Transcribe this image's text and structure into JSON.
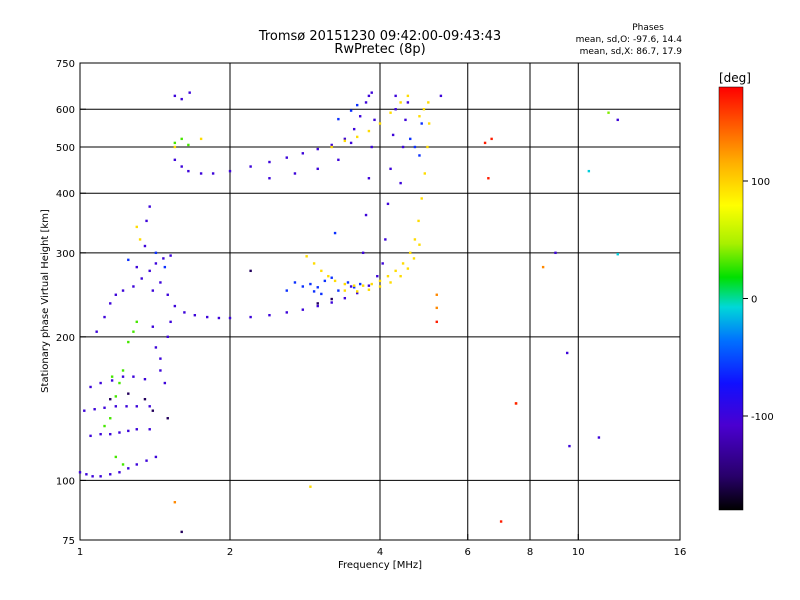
{
  "chart_data": {
    "type": "scatter",
    "title": "Tromsø 20151230 09:42:00-09:43:43",
    "subtitle": "RwPretec (8p)",
    "xlabel": "Frequency [MHz]",
    "ylabel": "Stationary phase Virtual Height [km]",
    "x_scale": "log",
    "y_scale": "log",
    "xlim": [
      1,
      16
    ],
    "ylim": [
      75,
      750
    ],
    "x_ticks": [
      1,
      2,
      4,
      6,
      8,
      10,
      16
    ],
    "y_ticks": [
      75,
      100,
      200,
      300,
      400,
      500,
      600,
      750
    ],
    "x_gridlines": [
      2,
      4,
      6,
      8,
      10
    ],
    "y_gridlines": [
      100,
      200,
      300,
      400,
      500,
      600
    ],
    "grid": true,
    "phases": {
      "title": "Phases",
      "line_o": "mean, sd,O: -97.6, 14.4",
      "line_x": "mean, sd,X:  86.7, 17.9"
    },
    "colorbar": {
      "unit": "[deg]",
      "range": [
        -180,
        180
      ],
      "ticks": [
        100,
        0,
        -100
      ]
    },
    "series": [
      {
        "points": [
          [
            1.0,
            104,
            -100
          ],
          [
            1.03,
            103,
            -100
          ],
          [
            1.06,
            102,
            -100
          ],
          [
            1.1,
            102,
            -100
          ],
          [
            1.15,
            103,
            -100
          ],
          [
            1.2,
            104,
            -100
          ],
          [
            1.25,
            106,
            -100
          ],
          [
            1.3,
            108,
            -100
          ],
          [
            1.36,
            110,
            -100
          ],
          [
            1.42,
            112,
            -100
          ],
          [
            1.05,
            124,
            -100
          ],
          [
            1.1,
            125,
            -100
          ],
          [
            1.15,
            125,
            -100
          ],
          [
            1.2,
            126,
            -100
          ],
          [
            1.25,
            127,
            -100
          ],
          [
            1.3,
            128,
            -100
          ],
          [
            1.38,
            128,
            -100
          ],
          [
            1.02,
            140,
            -100
          ],
          [
            1.07,
            141,
            -100
          ],
          [
            1.12,
            142,
            -100
          ],
          [
            1.18,
            143,
            -100
          ],
          [
            1.24,
            143,
            -100
          ],
          [
            1.3,
            143,
            -100
          ],
          [
            1.38,
            143,
            -100
          ],
          [
            1.05,
            157,
            -100
          ],
          [
            1.1,
            160,
            -100
          ],
          [
            1.16,
            162,
            -100
          ],
          [
            1.22,
            165,
            -100
          ],
          [
            1.28,
            165,
            -100
          ],
          [
            1.35,
            163,
            -100
          ],
          [
            1.08,
            205,
            -100
          ],
          [
            1.12,
            220,
            -100
          ],
          [
            1.15,
            235,
            -100
          ],
          [
            1.18,
            245,
            -100
          ],
          [
            1.22,
            250,
            -100
          ],
          [
            1.28,
            255,
            -100
          ],
          [
            1.33,
            265,
            -100
          ],
          [
            1.38,
            275,
            -100
          ],
          [
            1.42,
            285,
            -100
          ],
          [
            1.47,
            292,
            -100
          ],
          [
            1.52,
            296,
            -100
          ],
          [
            1.45,
            260,
            -100
          ],
          [
            1.5,
            245,
            -100
          ],
          [
            1.55,
            232,
            -100
          ],
          [
            1.62,
            225,
            -100
          ],
          [
            1.7,
            222,
            -100
          ],
          [
            1.8,
            220,
            -100
          ],
          [
            1.9,
            219,
            -100
          ],
          [
            2.0,
            219,
            -100
          ],
          [
            2.2,
            220,
            -100
          ],
          [
            2.4,
            222,
            -100
          ],
          [
            2.6,
            225,
            -100
          ],
          [
            2.8,
            228,
            -100
          ],
          [
            3.0,
            232,
            -100
          ],
          [
            3.2,
            236,
            -100
          ],
          [
            3.4,
            241,
            -100
          ],
          [
            3.6,
            247,
            -100
          ],
          [
            3.8,
            256,
            -100
          ],
          [
            3.95,
            268,
            -100
          ],
          [
            4.05,
            285,
            -100
          ],
          [
            4.1,
            320,
            -100
          ],
          [
            4.15,
            380,
            -100
          ],
          [
            4.2,
            450,
            -100
          ],
          [
            4.25,
            530,
            -100
          ],
          [
            4.3,
            600,
            -100
          ],
          [
            4.3,
            640,
            -100
          ],
          [
            1.3,
            280,
            -100
          ],
          [
            1.35,
            310,
            -100
          ],
          [
            1.36,
            350,
            -100
          ],
          [
            1.38,
            375,
            -100
          ],
          [
            1.4,
            250,
            -100
          ],
          [
            1.4,
            210,
            -100
          ],
          [
            1.42,
            190,
            -100
          ],
          [
            1.45,
            170,
            -100
          ],
          [
            1.48,
            160,
            -100
          ],
          [
            1.45,
            180,
            -100
          ],
          [
            1.5,
            200,
            -100
          ],
          [
            1.52,
            215,
            -100
          ],
          [
            1.55,
            470,
            -100
          ],
          [
            1.6,
            455,
            -100
          ],
          [
            1.65,
            445,
            -100
          ],
          [
            1.75,
            440,
            -100
          ],
          [
            1.85,
            440,
            -100
          ],
          [
            2.0,
            445,
            -100
          ],
          [
            2.2,
            455,
            -100
          ],
          [
            2.4,
            465,
            -100
          ],
          [
            2.6,
            475,
            -100
          ],
          [
            2.8,
            485,
            -100
          ],
          [
            3.0,
            495,
            -100
          ],
          [
            3.2,
            505,
            -100
          ],
          [
            3.4,
            520,
            -100
          ],
          [
            3.55,
            545,
            -100
          ],
          [
            3.65,
            580,
            -100
          ],
          [
            3.75,
            620,
            -100
          ],
          [
            3.85,
            650,
            -100
          ],
          [
            2.4,
            430,
            -100
          ],
          [
            2.7,
            440,
            -100
          ],
          [
            3.0,
            450,
            -100
          ],
          [
            3.3,
            470,
            -100
          ],
          [
            3.5,
            510,
            -100
          ],
          [
            3.7,
            300,
            -100
          ],
          [
            3.75,
            360,
            -100
          ],
          [
            3.8,
            430,
            -100
          ],
          [
            3.85,
            500,
            -100
          ],
          [
            3.9,
            570,
            -100
          ],
          [
            3.8,
            640,
            -100
          ],
          [
            4.4,
            420,
            -100
          ],
          [
            4.45,
            500,
            -100
          ],
          [
            4.5,
            570,
            -100
          ],
          [
            4.55,
            620,
            -100
          ],
          [
            1.55,
            640,
            -100
          ],
          [
            1.6,
            630,
            -100
          ],
          [
            1.66,
            650,
            -100
          ],
          [
            5.3,
            640,
            -100
          ],
          [
            9.0,
            300,
            -100
          ],
          [
            9.5,
            185,
            -100
          ],
          [
            9.6,
            118,
            -100
          ],
          [
            11.0,
            123,
            -100
          ],
          [
            12.0,
            570,
            -100
          ],
          [
            3.5,
            255,
            -100
          ]
        ]
      },
      {
        "points": [
          [
            2.7,
            260,
            -60
          ],
          [
            2.8,
            255,
            -60
          ],
          [
            2.9,
            258,
            -60
          ],
          [
            3.0,
            254,
            -60
          ],
          [
            3.1,
            262,
            -60
          ],
          [
            3.2,
            266,
            -60
          ],
          [
            2.6,
            250,
            -60
          ],
          [
            2.95,
            249,
            -60
          ],
          [
            3.05,
            246,
            -60
          ],
          [
            4.6,
            520,
            -60
          ],
          [
            4.7,
            500,
            -60
          ],
          [
            4.8,
            480,
            -60
          ],
          [
            4.85,
            560,
            -60
          ],
          [
            1.42,
            300,
            -60
          ],
          [
            1.48,
            280,
            -60
          ],
          [
            1.25,
            290,
            -60
          ],
          [
            3.25,
            330,
            -60
          ],
          [
            3.3,
            250,
            -60
          ],
          [
            3.45,
            260,
            -60
          ],
          [
            3.55,
            254,
            -60
          ],
          [
            3.65,
            258,
            -60
          ],
          [
            3.3,
            572,
            -60
          ],
          [
            3.5,
            596,
            -60
          ],
          [
            3.6,
            612,
            -60
          ],
          [
            10.5,
            445,
            -10
          ],
          [
            12.0,
            298,
            -10
          ]
        ]
      },
      {
        "points": [
          [
            2.85,
            295,
            95
          ],
          [
            2.95,
            285,
            95
          ],
          [
            3.05,
            275,
            95
          ],
          [
            3.15,
            268,
            95
          ],
          [
            3.25,
            262,
            95
          ],
          [
            3.4,
            258,
            95
          ],
          [
            3.55,
            256,
            95
          ],
          [
            3.7,
            256,
            95
          ],
          [
            3.85,
            258,
            95
          ],
          [
            4.0,
            262,
            95
          ],
          [
            4.15,
            268,
            95
          ],
          [
            4.3,
            275,
            95
          ],
          [
            4.45,
            285,
            95
          ],
          [
            4.6,
            300,
            95
          ],
          [
            4.7,
            320,
            95
          ],
          [
            4.78,
            350,
            95
          ],
          [
            4.85,
            390,
            95
          ],
          [
            4.92,
            440,
            95
          ],
          [
            4.98,
            500,
            95
          ],
          [
            5.02,
            560,
            95
          ],
          [
            3.4,
            250,
            95
          ],
          [
            3.6,
            249,
            95
          ],
          [
            3.8,
            251,
            95
          ],
          [
            4.0,
            255,
            95
          ],
          [
            4.2,
            260,
            95
          ],
          [
            4.4,
            268,
            95
          ],
          [
            4.55,
            278,
            95
          ],
          [
            4.68,
            292,
            95
          ],
          [
            4.8,
            312,
            95
          ],
          [
            3.2,
            500,
            95
          ],
          [
            3.4,
            515,
            95
          ],
          [
            3.6,
            525,
            95
          ],
          [
            3.8,
            540,
            95
          ],
          [
            4.0,
            560,
            95
          ],
          [
            4.2,
            590,
            95
          ],
          [
            4.4,
            620,
            95
          ],
          [
            4.55,
            640,
            95
          ],
          [
            4.8,
            580,
            95
          ],
          [
            4.9,
            600,
            95
          ],
          [
            5.0,
            620,
            95
          ],
          [
            1.55,
            500,
            95
          ],
          [
            1.75,
            520,
            95
          ],
          [
            1.3,
            340,
            95
          ],
          [
            1.32,
            320,
            95
          ],
          [
            5.2,
            245,
            130
          ],
          [
            5.2,
            230,
            130
          ],
          [
            2.9,
            97,
            95
          ],
          [
            8.5,
            280,
            130
          ],
          [
            7.5,
            145,
            130
          ],
          [
            1.55,
            90,
            130
          ],
          [
            11.5,
            590,
            40
          ]
        ]
      },
      {
        "points": [
          [
            1.12,
            130,
            30
          ],
          [
            1.15,
            135,
            30
          ],
          [
            1.18,
            150,
            30
          ],
          [
            1.2,
            160,
            30
          ],
          [
            1.22,
            170,
            30
          ],
          [
            1.25,
            195,
            30
          ],
          [
            1.28,
            205,
            30
          ],
          [
            1.3,
            215,
            30
          ],
          [
            1.22,
            108,
            30
          ],
          [
            1.18,
            112,
            30
          ],
          [
            1.16,
            165,
            30
          ],
          [
            1.55,
            510,
            30
          ],
          [
            1.6,
            520,
            30
          ],
          [
            1.65,
            505,
            30
          ]
        ]
      },
      {
        "points": [
          [
            5.2,
            215,
            170
          ],
          [
            6.5,
            510,
            170
          ],
          [
            6.7,
            520,
            170
          ],
          [
            6.6,
            430,
            170
          ],
          [
            7.0,
            82,
            170
          ],
          [
            7.5,
            145,
            170
          ]
        ]
      },
      {
        "points": [
          [
            1.15,
            148,
            -155
          ],
          [
            1.25,
            152,
            -155
          ],
          [
            1.35,
            148,
            -155
          ],
          [
            1.4,
            140,
            -155
          ],
          [
            1.5,
            135,
            -155
          ],
          [
            3.0,
            235,
            -155
          ],
          [
            3.2,
            240,
            -155
          ],
          [
            2.2,
            275,
            -155
          ],
          [
            1.6,
            78,
            -155
          ]
        ]
      }
    ]
  }
}
